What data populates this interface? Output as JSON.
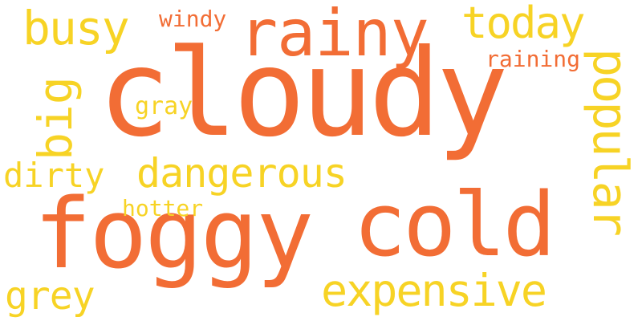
{
  "colors": {
    "orange": "#f26d35",
    "yellow": "#f7d325",
    "background": "#ffffff"
  },
  "words": {
    "cloudy": "cloudy",
    "foggy": "foggy",
    "cold": "cold",
    "rainy": "rainy",
    "busy": "busy",
    "today": "today",
    "windy": "windy",
    "raining": "raining",
    "gray": "gray",
    "big": "big",
    "dirty": "dirty",
    "dangerous": "dangerous",
    "hotter": "hotter",
    "popular": "popular",
    "expensive": "expensive",
    "grey": "grey"
  }
}
